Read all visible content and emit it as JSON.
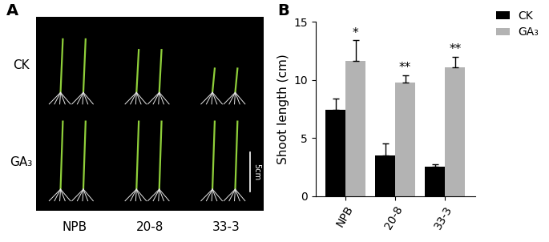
{
  "chart_data": {
    "type": "bar",
    "panel_label": "B",
    "y_label": "Shoot length (cm)",
    "categories": [
      "NPB",
      "20-8",
      "33-3"
    ],
    "series": [
      {
        "name": "CK",
        "color": "#000000",
        "values": [
          7.4,
          3.5,
          2.5
        ],
        "errors": [
          1.0,
          1.0,
          0.2
        ]
      },
      {
        "name": "GA₃",
        "color": "#b3b3b3",
        "values": [
          11.6,
          9.8,
          11.1
        ],
        "errors": [
          1.8,
          0.6,
          0.9
        ],
        "significance": [
          "*",
          "**",
          "**"
        ]
      }
    ],
    "ylim": [
      0,
      15
    ],
    "yticks": [
      0,
      5,
      10,
      15
    ],
    "legend": "upper right",
    "grid": false
  },
  "panel_a": {
    "panel_label": "A",
    "rows": [
      "CK",
      "GA₃"
    ],
    "columns": [
      "NPB",
      "20-8",
      "33-3"
    ],
    "scale_bar": "5cm"
  }
}
